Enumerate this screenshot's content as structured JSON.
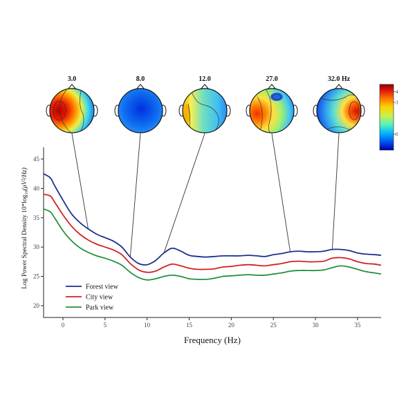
{
  "chart_data": {
    "type": "line",
    "title": "",
    "xlabel": "Frequency (Hz)",
    "ylabel_main": "Log Power Spectral Density 10*log",
    "ylabel_sub": "10",
    "ylabel_tail": "(μV²/Hz)",
    "xlim": [
      -2.3,
      37.8
    ],
    "ylim": [
      18,
      47
    ],
    "xticks": [
      0,
      5,
      10,
      15,
      20,
      25,
      30,
      35
    ],
    "yticks": [
      20,
      25,
      30,
      35,
      40,
      45
    ],
    "x": [
      -2.3,
      -1.5,
      -1,
      0,
      1,
      2,
      3,
      4,
      5,
      6,
      7,
      8,
      9,
      10,
      11,
      12,
      13,
      14,
      15,
      16,
      17,
      18,
      19,
      20,
      21,
      22,
      23,
      24,
      25,
      26,
      27,
      28,
      29,
      30,
      31,
      32,
      33,
      34,
      35,
      36,
      37,
      37.8
    ],
    "series": [
      {
        "name": "Forest view",
        "color": "#1a2f8f",
        "values": [
          42.5,
          41.8,
          40.5,
          38.0,
          35.7,
          34.2,
          33.1,
          32.2,
          31.6,
          31.0,
          30.0,
          28.3,
          27.2,
          27.0,
          27.7,
          29.0,
          29.8,
          29.3,
          28.6,
          28.4,
          28.3,
          28.4,
          28.5,
          28.5,
          28.5,
          28.6,
          28.5,
          28.4,
          28.7,
          28.9,
          29.2,
          29.3,
          29.2,
          29.2,
          29.3,
          29.6,
          29.6,
          29.4,
          29.0,
          28.8,
          28.7,
          28.6
        ]
      },
      {
        "name": "City view",
        "color": "#d42020",
        "values": [
          39.0,
          38.7,
          37.7,
          35.5,
          33.6,
          32.2,
          31.2,
          30.5,
          30.0,
          29.5,
          28.7,
          27.2,
          26.1,
          25.7,
          25.9,
          26.6,
          27.1,
          26.8,
          26.4,
          26.2,
          26.2,
          26.3,
          26.6,
          26.7,
          26.9,
          27.0,
          26.9,
          26.8,
          27.0,
          27.2,
          27.5,
          27.6,
          27.5,
          27.5,
          27.6,
          28.1,
          28.2,
          28.0,
          27.5,
          27.2,
          27.1,
          26.9
        ]
      },
      {
        "name": "Park view",
        "color": "#23903a",
        "values": [
          36.5,
          36.0,
          35.0,
          32.8,
          31.1,
          29.9,
          29.1,
          28.5,
          28.1,
          27.6,
          26.9,
          25.7,
          24.8,
          24.4,
          24.6,
          25.0,
          25.2,
          25.0,
          24.6,
          24.5,
          24.5,
          24.7,
          25.0,
          25.1,
          25.2,
          25.3,
          25.2,
          25.2,
          25.4,
          25.6,
          25.9,
          26.0,
          26.0,
          26.0,
          26.1,
          26.5,
          26.8,
          26.6,
          26.2,
          25.8,
          25.6,
          25.4
        ]
      }
    ],
    "legend_position": "bottom-left",
    "grid": false,
    "topomaps": [
      {
        "label": "3.0",
        "freq": 3.0,
        "series": "Forest view"
      },
      {
        "label": "8.0",
        "freq": 8.0,
        "series": "Forest view"
      },
      {
        "label": "12.0",
        "freq": 12.0,
        "series": "Forest view"
      },
      {
        "label": "27.0",
        "freq": 27.0,
        "series": "Forest view"
      },
      {
        "label": "32.0 Hz",
        "freq": 32.0,
        "series": "Forest view"
      }
    ],
    "colorbar": {
      "ticks": [
        4,
        3,
        0
      ],
      "min": -1.5,
      "max": 4.7,
      "colors": [
        "#0000a8",
        "#0050f0",
        "#00b0ff",
        "#50f0c0",
        "#c8f050",
        "#ffd000",
        "#ff6a00",
        "#d81010",
        "#8a0000"
      ]
    }
  }
}
